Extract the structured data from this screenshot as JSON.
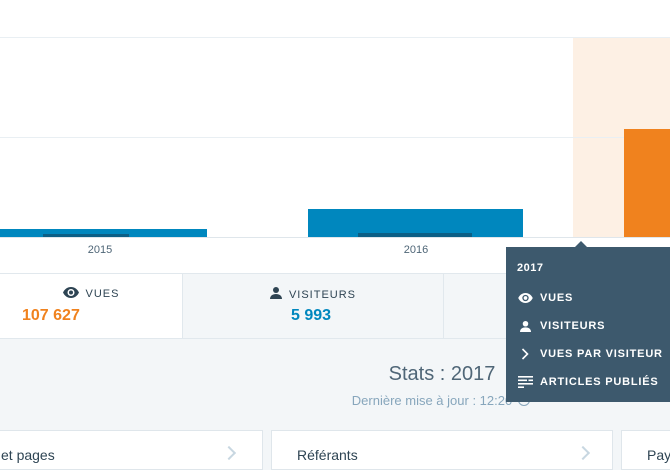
{
  "chart_data": {
    "type": "bar",
    "categories": [
      "2015",
      "2016",
      "2017"
    ],
    "series": [
      {
        "name": "Vues",
        "values": [
          8,
          28,
          108
        ],
        "color": "#0087be"
      },
      {
        "name": "Visiteurs",
        "values": [
          3,
          4,
          null
        ],
        "color": "#0b5f86"
      }
    ],
    "highlight_color": "#f0821e",
    "highlighted_category": "2017",
    "ylim": [
      0,
      200
    ],
    "grid": true
  },
  "tabs": [
    {
      "label": "VUES",
      "value": "107 627",
      "icon": "eye-icon",
      "value_color": "#f0821e",
      "active": true
    },
    {
      "label": "VISITEURS",
      "value": "5 993",
      "icon": "person-icon",
      "value_color": "#0087be",
      "active": false
    }
  ],
  "summary": {
    "title": "Stats : 2017",
    "subtitle": "Dernière mise à jour : 12:20"
  },
  "cards": [
    {
      "title": "et pages"
    },
    {
      "title": "Référants"
    },
    {
      "title": "Pay"
    }
  ],
  "tooltip": {
    "heading": "2017",
    "rows": [
      {
        "label": "VUES",
        "icon": "eye-icon"
      },
      {
        "label": "VISITEURS",
        "icon": "person-icon"
      },
      {
        "label": "VUES PAR VISITEUR",
        "icon": "chevron-right-icon"
      },
      {
        "label": "ARTICLES PUBLIÉS",
        "icon": "text-lines-icon"
      }
    ]
  },
  "colors": {
    "accent_orange": "#f0821e",
    "accent_blue": "#0087be",
    "tooltip_bg": "#3d596d"
  }
}
